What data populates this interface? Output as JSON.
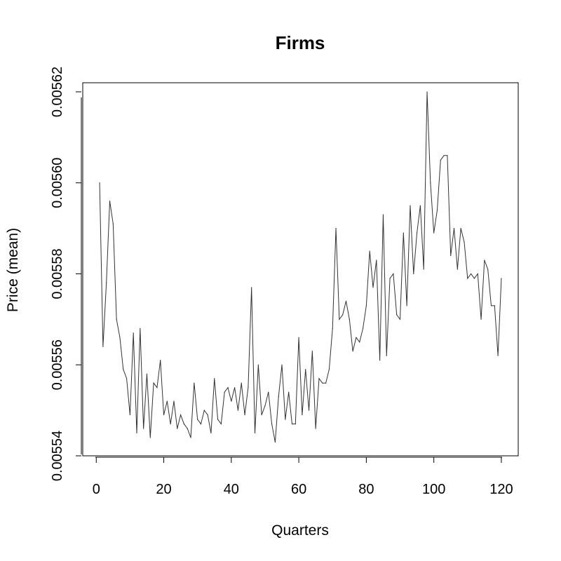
{
  "chart_data": {
    "type": "line",
    "title": "Firms",
    "xlabel": "Quarters",
    "ylabel": "Price (mean)",
    "xlim": [
      -4,
      125
    ],
    "ylim": [
      0.00554,
      0.005622
    ],
    "x_ticks": [
      0,
      20,
      40,
      60,
      80,
      100,
      120
    ],
    "x_tick_labels": [
      "0",
      "20",
      "40",
      "60",
      "80",
      "100",
      "120"
    ],
    "y_ticks": [
      0.00554,
      0.00556,
      0.00558,
      0.0056,
      0.00562
    ],
    "y_tick_labels": [
      "0.00554",
      "0.00556",
      "0.00558",
      "0.00560",
      "0.00562"
    ],
    "grid": false,
    "line_color": "#333333",
    "series": [
      {
        "x": [
          1,
          2,
          3,
          4,
          5,
          6,
          7,
          8,
          9,
          10,
          11,
          12,
          13,
          14,
          15,
          16,
          17,
          18,
          19,
          20,
          21,
          22,
          23,
          24,
          25,
          26,
          27,
          28,
          29,
          30,
          31,
          32,
          33,
          34,
          35,
          36,
          37,
          38,
          39,
          40,
          41,
          42,
          43,
          44,
          45,
          46,
          47,
          48,
          49,
          50,
          51,
          52,
          53,
          54,
          55,
          56,
          57,
          58,
          59,
          60,
          61,
          62,
          63,
          64,
          65,
          66,
          67,
          68,
          69,
          70,
          71,
          72,
          73,
          74,
          75,
          76,
          77,
          78,
          79,
          80,
          81,
          82,
          83,
          84,
          85,
          86,
          87,
          88,
          89,
          90,
          91,
          92,
          93,
          94,
          95,
          96,
          97,
          98,
          99,
          100,
          101,
          102,
          103,
          104,
          105,
          106,
          107,
          108,
          109,
          110,
          111,
          112,
          113,
          114,
          115,
          116,
          117,
          118,
          119,
          120
        ],
        "values": [
          0.0056,
          0.005564,
          0.005578,
          0.005596,
          0.005591,
          0.00557,
          0.005566,
          0.005559,
          0.005557,
          0.005549,
          0.005567,
          0.005545,
          0.005568,
          0.005546,
          0.005558,
          0.005544,
          0.005556,
          0.005555,
          0.005561,
          0.005549,
          0.005552,
          0.005547,
          0.005552,
          0.005546,
          0.005549,
          0.005547,
          0.005546,
          0.005544,
          0.005556,
          0.005548,
          0.005547,
          0.00555,
          0.005549,
          0.005545,
          0.005557,
          0.005548,
          0.005547,
          0.005554,
          0.005555,
          0.005552,
          0.005555,
          0.00555,
          0.005556,
          0.005549,
          0.005555,
          0.005577,
          0.005545,
          0.00556,
          0.005549,
          0.005551,
          0.005554,
          0.005547,
          0.005543,
          0.005553,
          0.00556,
          0.005548,
          0.005554,
          0.005547,
          0.005547,
          0.005566,
          0.005549,
          0.005559,
          0.00555,
          0.005563,
          0.005546,
          0.005557,
          0.005556,
          0.005556,
          0.005559,
          0.005568,
          0.00559,
          0.00557,
          0.005571,
          0.005574,
          0.00557,
          0.005563,
          0.005566,
          0.005565,
          0.005568,
          0.005573,
          0.005585,
          0.005577,
          0.005583,
          0.005561,
          0.005593,
          0.005562,
          0.005579,
          0.00558,
          0.005571,
          0.00557,
          0.005589,
          0.005573,
          0.005595,
          0.00558,
          0.005589,
          0.005595,
          0.005581,
          0.00562,
          0.0056,
          0.005589,
          0.005594,
          0.005605,
          0.005606,
          0.005606,
          0.005584,
          0.00559,
          0.005581,
          0.00559,
          0.005587,
          0.005579,
          0.00558,
          0.005579,
          0.00558,
          0.00557,
          0.005583,
          0.005581,
          0.005573,
          0.005573,
          0.005562,
          0.005579
        ]
      }
    ]
  }
}
